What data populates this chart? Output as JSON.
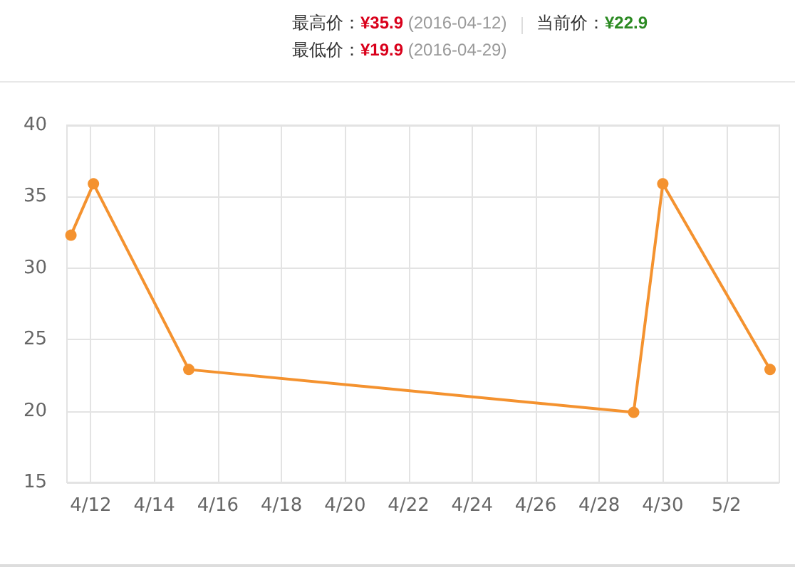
{
  "chart_data": {
    "type": "line",
    "annotations": [
      "最高价：¥35.9 (2016-04-12)",
      "当前价：¥22.9",
      "最低价：¥19.9 (2016-04-29)"
    ],
    "x": [
      "2016-04-11T09:00",
      "2016-04-12T02:00",
      "2016-04-15T02:00",
      "2016-04-29T02:00",
      "2016-04-30T00:00",
      "2016-05-03T09:00"
    ],
    "values": [
      32.3,
      35.9,
      22.9,
      19.9,
      35.9,
      22.9
    ],
    "color": "#f4922f",
    "marker": "circle",
    "line_style": "solid",
    "xlim": [
      "2016-04-11T06:00",
      "2016-05-03T16:00"
    ],
    "xticks": [
      {
        "value": "2016-04-12",
        "label": "4/12"
      },
      {
        "value": "2016-04-14",
        "label": "4/14"
      },
      {
        "value": "2016-04-16",
        "label": "4/16"
      },
      {
        "value": "2016-04-18",
        "label": "4/18"
      },
      {
        "value": "2016-04-20",
        "label": "4/20"
      },
      {
        "value": "2016-04-22",
        "label": "4/22"
      },
      {
        "value": "2016-04-24",
        "label": "4/24"
      },
      {
        "value": "2016-04-26",
        "label": "4/26"
      },
      {
        "value": "2016-04-28",
        "label": "4/28"
      },
      {
        "value": "2016-04-30",
        "label": "4/30"
      },
      {
        "value": "2016-05-02",
        "label": "5/2"
      }
    ],
    "ylim": [
      15,
      40
    ],
    "yticks": [
      15,
      20,
      25,
      30,
      35,
      40
    ],
    "grid": true
  }
}
